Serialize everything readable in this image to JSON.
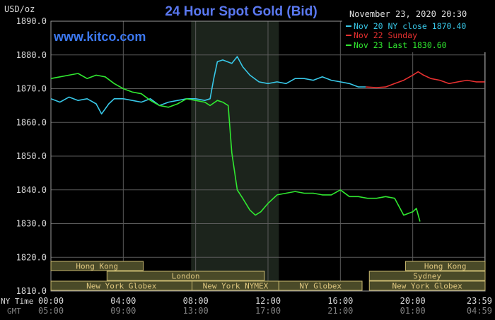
{
  "chart_data": {
    "type": "line",
    "title": "24 Hour Spot Gold (Bid)",
    "unit_label": "USD/oz",
    "watermark": "www.kitco.com",
    "timestamp": "November 23, 2020 20:30",
    "ylim": [
      1810,
      1890
    ],
    "y_ticks": [
      "1890.0",
      "1880.0",
      "1870.0",
      "1860.0",
      "1850.0",
      "1840.0",
      "1830.0",
      "1820.0",
      "1810.0"
    ],
    "y_tick_values": [
      1890,
      1880,
      1870,
      1860,
      1850,
      1840,
      1830,
      1820,
      1810
    ],
    "xlim": [
      0,
      24
    ],
    "x_row_labels": [
      "NY Time",
      "GMT"
    ],
    "x_ticks_ny": [
      "00:00",
      "04:00",
      "08:00",
      "12:00",
      "16:00",
      "20:00",
      "23:59"
    ],
    "x_ticks_gmt": [
      "05:00",
      "09:00",
      "13:00",
      "17:00",
      "21:00",
      "01:00",
      "04:59"
    ],
    "x_tick_hours": [
      0,
      4,
      8,
      12,
      16,
      20,
      23.98
    ],
    "shaded_region": [
      7.75,
      12.6
    ],
    "legend": [
      "Nov 20 NY close 1870.40",
      "Nov 22 Sunday",
      "Nov 23 Last 1830.60"
    ],
    "series": [
      {
        "name": "Nov 20 NY close 1870.40",
        "color": "#38c8e8",
        "x": [
          0,
          0.5,
          1,
          1.5,
          2,
          2.5,
          2.8,
          3.2,
          3.5,
          4,
          4.5,
          5,
          5.5,
          6,
          6.5,
          7,
          7.5,
          8,
          8.5,
          8.8,
          9.0,
          9.2,
          9.5,
          10,
          10.3,
          10.6,
          11,
          11.5,
          12,
          12.5,
          13,
          13.5,
          14,
          14.5,
          15,
          15.5,
          16,
          16.5,
          17,
          17.4
        ],
        "values": [
          1867,
          1866,
          1867.5,
          1866.5,
          1867,
          1865.5,
          1862.5,
          1865.5,
          1867,
          1867,
          1866.5,
          1866,
          1867,
          1865,
          1866,
          1866.5,
          1867,
          1867,
          1866.5,
          1867,
          1873,
          1878,
          1878.5,
          1877.5,
          1879.5,
          1876.5,
          1874,
          1872,
          1871.5,
          1872,
          1871.5,
          1873,
          1873,
          1872.5,
          1873.5,
          1872.5,
          1872,
          1871.5,
          1870.5,
          1870.5
        ]
      },
      {
        "name": "Nov 22 Sunday",
        "color": "#e83030",
        "x": [
          17.4,
          18,
          18.5,
          19,
          19.5,
          20,
          20.3,
          20.6,
          21,
          21.5,
          22,
          22.5,
          23,
          23.5,
          23.98
        ],
        "values": [
          1870.5,
          1870.3,
          1870.5,
          1871.5,
          1872.5,
          1874,
          1875,
          1874,
          1873,
          1872.5,
          1871.5,
          1872,
          1872.5,
          1872,
          1872
        ]
      },
      {
        "name": "Nov 23 Last 1830.60",
        "color": "#30e830",
        "x": [
          0,
          0.5,
          1,
          1.5,
          2,
          2.5,
          3,
          3.5,
          4,
          4.5,
          5,
          5.5,
          6,
          6.5,
          7,
          7.5,
          8,
          8.5,
          8.8,
          9.2,
          9.5,
          9.8,
          10.0,
          10.3,
          10.6,
          11,
          11.3,
          11.6,
          12,
          12.5,
          13,
          13.5,
          14,
          14.5,
          15,
          15.5,
          16,
          16.5,
          17,
          17.5,
          18,
          18.5,
          19,
          19.2,
          19.5,
          20,
          20.2,
          20.4
        ],
        "values": [
          1873,
          1873.5,
          1874,
          1874.5,
          1873,
          1874,
          1873.5,
          1871.5,
          1870,
          1869,
          1868.5,
          1866.5,
          1865,
          1864.5,
          1865.5,
          1867,
          1866.5,
          1866,
          1865,
          1866.5,
          1866,
          1865,
          1851,
          1840,
          1837.5,
          1834,
          1832.5,
          1833.5,
          1836,
          1838.5,
          1839,
          1839.5,
          1839,
          1839,
          1838.5,
          1838.5,
          1840,
          1838,
          1838,
          1837.5,
          1837.5,
          1838,
          1837.5,
          1835.5,
          1832.5,
          1833.5,
          1834.5,
          1830.6
        ]
      }
    ],
    "sessions": [
      {
        "label": "Hong Kong",
        "row": 0,
        "start": -0.3,
        "end": 5.1
      },
      {
        "label": "Hong Kong",
        "row": 0,
        "start": 19.6,
        "end": 24
      },
      {
        "label": "London",
        "row": 1,
        "start": 3.1,
        "end": 11.8
      },
      {
        "label": "Sydney",
        "row": 1,
        "start": 17.6,
        "end": 24
      },
      {
        "label": "New York Globex",
        "row": 2,
        "start": -0.3,
        "end": 7.8
      },
      {
        "label": "New York NYMEX",
        "row": 2,
        "start": 7.8,
        "end": 12.6
      },
      {
        "label": "NY Globex",
        "row": 2,
        "start": 12.6,
        "end": 17.2
      },
      {
        "label": "New York Globex",
        "row": 2,
        "start": 17.6,
        "end": 24
      }
    ],
    "colors": {
      "background": "#000000",
      "grid": "#5a5a5a",
      "shade": "#1c241c",
      "title": "#5a78f0",
      "watermark": "#3c78f0",
      "axis_text": "#d8d8d8",
      "dim_text": "#808080",
      "session_fill": "#4a4a28",
      "session_border": "#c8b870",
      "session_text": "#e0c880"
    }
  }
}
